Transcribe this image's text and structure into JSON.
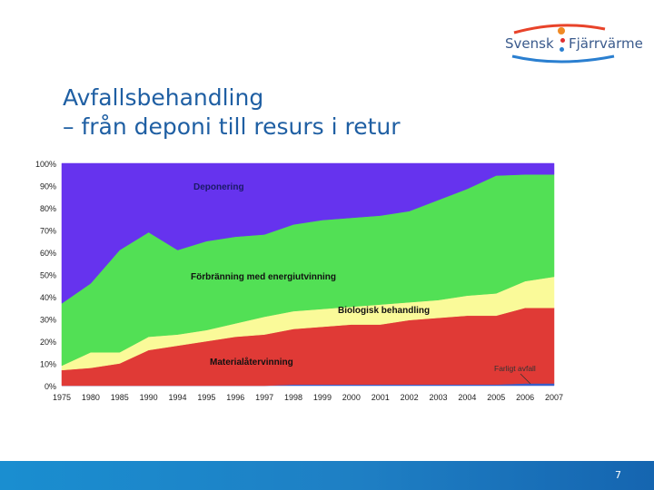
{
  "logo": {
    "brand": "Svensk",
    "brand2": "Fjärrvärme"
  },
  "title": {
    "line1": "Avfallsbehandling",
    "line2": "– från deponi till resurs i retur"
  },
  "page_number": "7",
  "chart_data": {
    "type": "area",
    "stacked": true,
    "title": "",
    "xlabel": "",
    "ylabel": "",
    "ylim": [
      0,
      100
    ],
    "yticks": [
      "0%",
      "10%",
      "20%",
      "30%",
      "40%",
      "50%",
      "60%",
      "70%",
      "80%",
      "90%",
      "100%"
    ],
    "x": [
      "1975",
      "1980",
      "1985",
      "1990",
      "1994",
      "1995",
      "1996",
      "1997",
      "1998",
      "1999",
      "2000",
      "2001",
      "2002",
      "2003",
      "2004",
      "2005",
      "2006",
      "2007"
    ],
    "grid": false,
    "series": [
      {
        "name": "Farligt avfall",
        "color": "#3a5ec8",
        "values": [
          0,
          0,
          0,
          0,
          0,
          0,
          0,
          0,
          0.5,
          0.5,
          0.5,
          0.5,
          0.5,
          0.5,
          0.5,
          0.5,
          1,
          1
        ]
      },
      {
        "name": "Materialåtervinning",
        "color": "#e03a36",
        "values": [
          7,
          8,
          10,
          16,
          18,
          20,
          22,
          23,
          25,
          26,
          27,
          27,
          29,
          30,
          31,
          31,
          34,
          34
        ]
      },
      {
        "name": "Biologisk behandling",
        "color": "#fafa99",
        "values": [
          2,
          7,
          5,
          6,
          5,
          5,
          6,
          8,
          8,
          8,
          8,
          9,
          8,
          8,
          9,
          10,
          12,
          14
        ]
      },
      {
        "name": "Förbränning med energiutvinning",
        "color": "#52e055",
        "values": [
          28,
          31,
          46,
          47,
          38,
          40,
          39,
          37,
          39,
          40,
          40,
          40,
          41,
          45,
          48,
          53,
          48,
          46
        ]
      },
      {
        "name": "Deponering",
        "color": "#6633ee",
        "values": [
          63,
          54,
          39,
          31,
          39,
          35,
          33,
          32,
          27.5,
          25.5,
          24.5,
          23.5,
          21.5,
          16.5,
          11.5,
          5.5,
          5,
          5
        ]
      }
    ],
    "labels": [
      "Deponering",
      "Förbränning med energiutvinning",
      "Biologisk behandling",
      "Materialåtervinning",
      "Farligt avfall"
    ]
  }
}
